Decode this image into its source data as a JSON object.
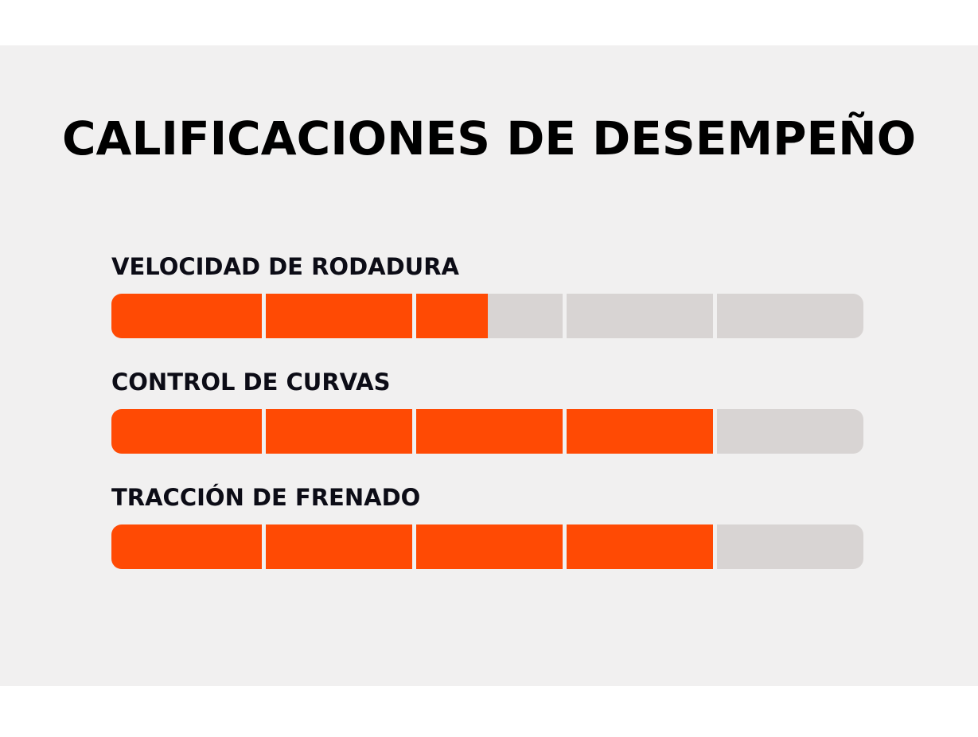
{
  "title": "CALIFICACIONES DE DESEMPEÑO",
  "colors": {
    "accent": "#ff4a04",
    "track": "#d8d4d3",
    "panel": "#f1f0f0",
    "text": "#000000"
  },
  "scale_max": 5,
  "ratings": [
    {
      "label": "VELOCIDAD DE RODADURA",
      "value": 2.5
    },
    {
      "label": "CONTROL DE CURVAS",
      "value": 4
    },
    {
      "label": "TRACCIÓN DE FRENADO",
      "value": 4
    }
  ]
}
